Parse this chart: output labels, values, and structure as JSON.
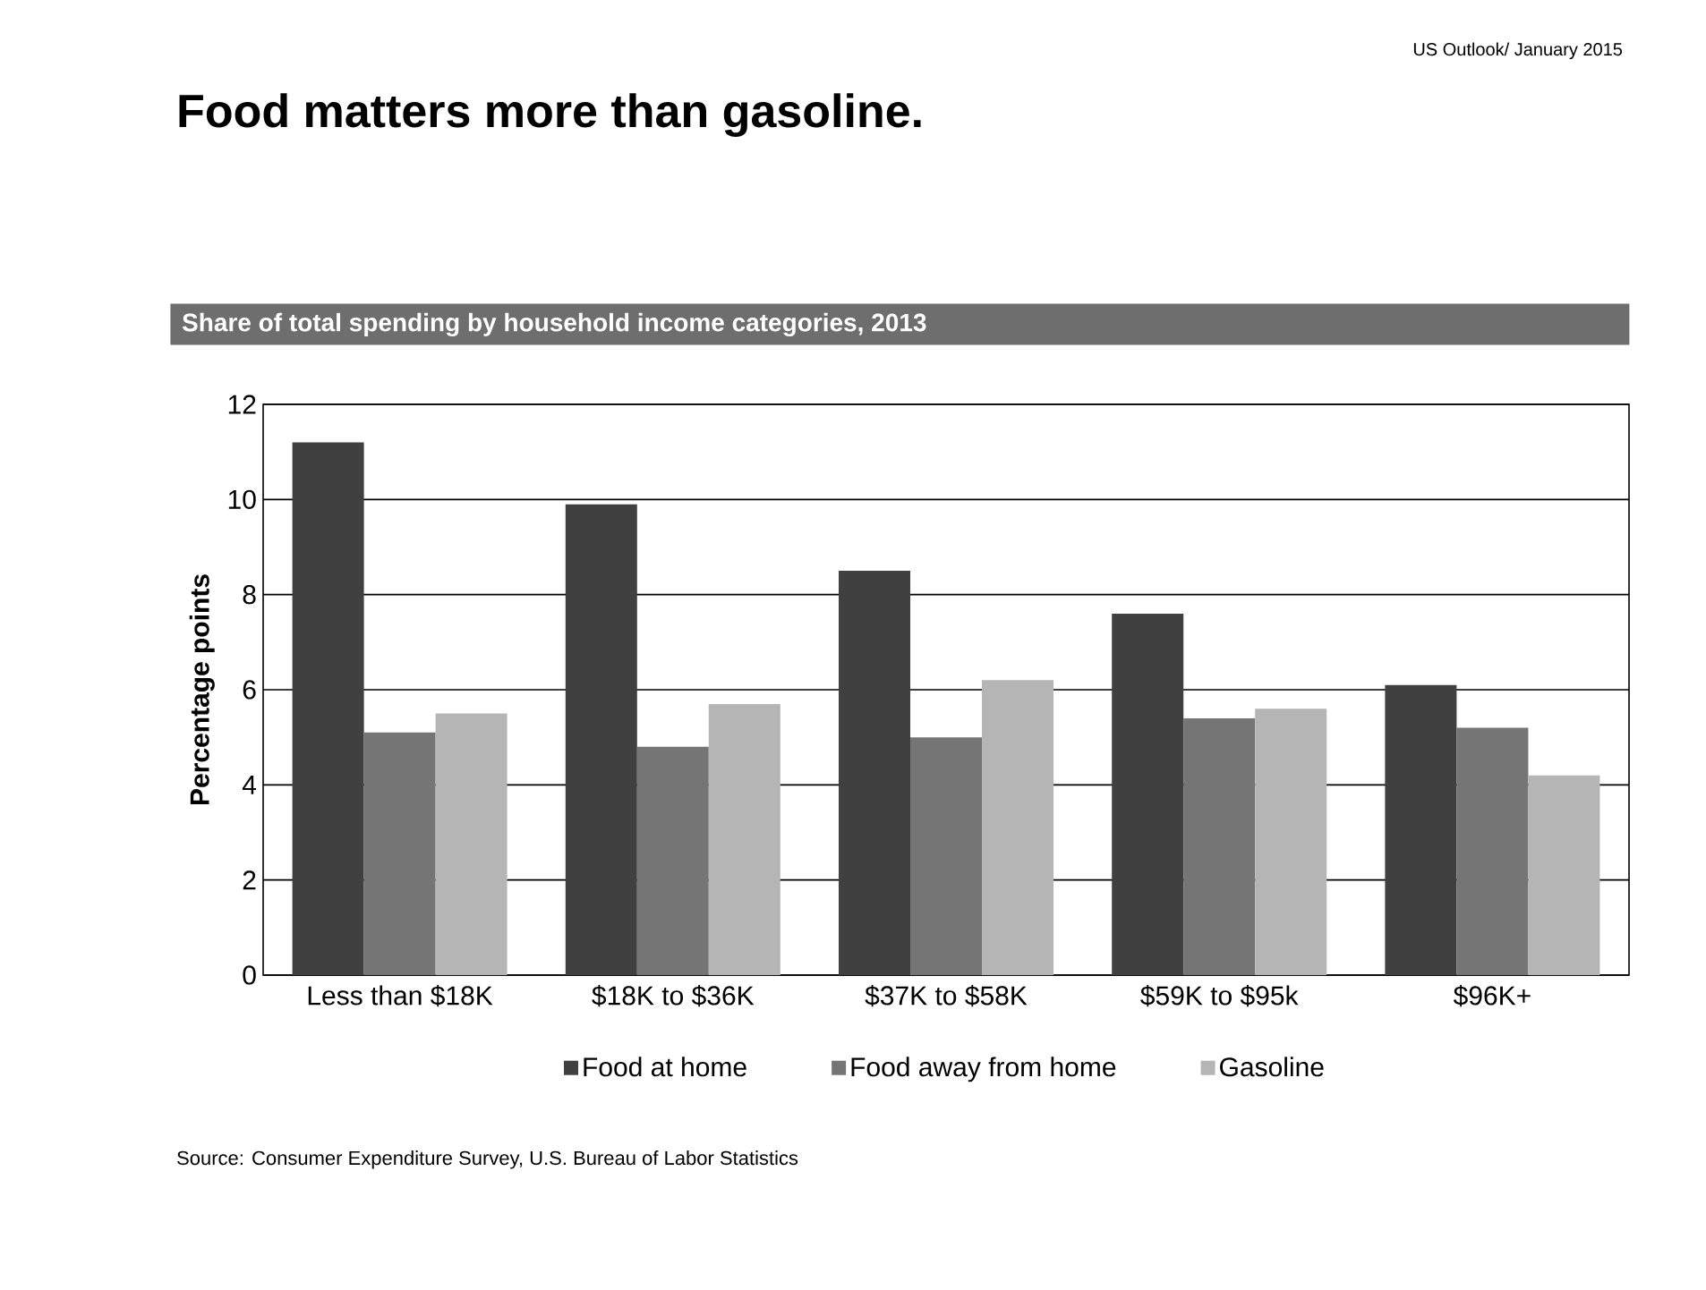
{
  "chart_data": {
    "type": "bar",
    "title": "Food matters more than gasoline.",
    "subtitle": "Share of total spending by household income categories, 2013",
    "ylabel": "Percentage points",
    "categories": [
      "Less than $18K",
      "$18K to $36K",
      "$37K to $58K",
      "$59K to $95k",
      "$96K+"
    ],
    "series": [
      {
        "name": "Food at home",
        "color": "#404040",
        "values": [
          11.2,
          9.9,
          8.5,
          7.6,
          6.1
        ]
      },
      {
        "name": "Food away from home",
        "color": "#757575",
        "values": [
          5.1,
          4.8,
          5.0,
          5.4,
          5.2
        ]
      },
      {
        "name": "Gasoline",
        "color": "#b5b5b5",
        "values": [
          5.5,
          5.7,
          6.2,
          5.6,
          4.2
        ]
      }
    ],
    "ylim": [
      0,
      12
    ],
    "yticks": [
      0,
      2,
      4,
      6,
      8,
      10,
      12
    ],
    "grid": "y",
    "legend": "bottom",
    "annotations": [
      "US Outlook/ January 2015",
      "Source: Consumer Expenditure Survey, U.S. Bureau of Labor Statistics"
    ]
  }
}
